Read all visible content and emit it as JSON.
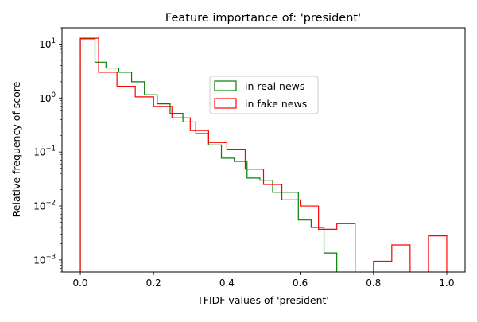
{
  "chart_data": {
    "type": "histogram",
    "title": "Feature importance of: 'president'",
    "xlabel": "TFIDF values of 'president'",
    "ylabel": "Relative frequency of score",
    "yscale": "log",
    "xlim": [
      -0.05,
      1.05
    ],
    "ylim": [
      0.0006,
      20
    ],
    "x_ticks": [
      0.0,
      0.2,
      0.4,
      0.6,
      0.8,
      1.0
    ],
    "x_tick_labels": [
      "0.0",
      "0.2",
      "0.4",
      "0.6",
      "0.8",
      "1.0"
    ],
    "y_ticks": [
      0.001,
      0.01,
      0.1,
      1,
      10
    ],
    "y_tick_labels": [
      {
        "base": "10",
        "exp": "−3"
      },
      {
        "base": "10",
        "exp": "−2"
      },
      {
        "base": "10",
        "exp": "−1"
      },
      {
        "base": "10",
        "exp": "0"
      },
      {
        "base": "10",
        "exp": "1"
      }
    ],
    "legend_position": "upper-center",
    "series": [
      {
        "name": "in real news",
        "color": "#008000",
        "bins": [
          {
            "x0": 0.0,
            "x1": 0.04,
            "y": 12.5
          },
          {
            "x0": 0.04,
            "x1": 0.07,
            "y": 4.6
          },
          {
            "x0": 0.07,
            "x1": 0.105,
            "y": 3.6
          },
          {
            "x0": 0.105,
            "x1": 0.14,
            "y": 3.0
          },
          {
            "x0": 0.14,
            "x1": 0.175,
            "y": 2.0
          },
          {
            "x0": 0.175,
            "x1": 0.21,
            "y": 1.15
          },
          {
            "x0": 0.21,
            "x1": 0.245,
            "y": 0.78
          },
          {
            "x0": 0.245,
            "x1": 0.28,
            "y": 0.52
          },
          {
            "x0": 0.28,
            "x1": 0.315,
            "y": 0.36
          },
          {
            "x0": 0.315,
            "x1": 0.35,
            "y": 0.22
          },
          {
            "x0": 0.35,
            "x1": 0.385,
            "y": 0.135
          },
          {
            "x0": 0.385,
            "x1": 0.42,
            "y": 0.077
          },
          {
            "x0": 0.42,
            "x1": 0.455,
            "y": 0.067
          },
          {
            "x0": 0.455,
            "x1": 0.49,
            "y": 0.033
          },
          {
            "x0": 0.49,
            "x1": 0.525,
            "y": 0.03
          },
          {
            "x0": 0.525,
            "x1": 0.56,
            "y": 0.018
          },
          {
            "x0": 0.56,
            "x1": 0.595,
            "y": 0.018
          },
          {
            "x0": 0.595,
            "x1": 0.63,
            "y": 0.0055
          },
          {
            "x0": 0.63,
            "x1": 0.665,
            "y": 0.004
          },
          {
            "x0": 0.665,
            "x1": 0.7,
            "y": 0.00135
          }
        ]
      },
      {
        "name": "in fake news",
        "color": "#ff0000",
        "bins": [
          {
            "x0": 0.0,
            "x1": 0.05,
            "y": 12.8
          },
          {
            "x0": 0.05,
            "x1": 0.1,
            "y": 3.0
          },
          {
            "x0": 0.1,
            "x1": 0.15,
            "y": 1.65
          },
          {
            "x0": 0.15,
            "x1": 0.2,
            "y": 1.05
          },
          {
            "x0": 0.2,
            "x1": 0.25,
            "y": 0.7
          },
          {
            "x0": 0.25,
            "x1": 0.3,
            "y": 0.43
          },
          {
            "x0": 0.3,
            "x1": 0.35,
            "y": 0.25
          },
          {
            "x0": 0.35,
            "x1": 0.4,
            "y": 0.15
          },
          {
            "x0": 0.4,
            "x1": 0.45,
            "y": 0.11
          },
          {
            "x0": 0.45,
            "x1": 0.5,
            "y": 0.048
          },
          {
            "x0": 0.5,
            "x1": 0.55,
            "y": 0.025
          },
          {
            "x0": 0.55,
            "x1": 0.6,
            "y": 0.013
          },
          {
            "x0": 0.6,
            "x1": 0.65,
            "y": 0.01
          },
          {
            "x0": 0.65,
            "x1": 0.7,
            "y": 0.0037
          },
          {
            "x0": 0.7,
            "x1": 0.75,
            "y": 0.0047
          },
          {
            "x0": 0.75,
            "x1": 0.8,
            "y": 0
          },
          {
            "x0": 0.8,
            "x1": 0.85,
            "y": 0.00095
          },
          {
            "x0": 0.85,
            "x1": 0.9,
            "y": 0.0019
          },
          {
            "x0": 0.9,
            "x1": 0.95,
            "y": 0
          },
          {
            "x0": 0.95,
            "x1": 1.0,
            "y": 0.0028
          }
        ]
      }
    ]
  }
}
